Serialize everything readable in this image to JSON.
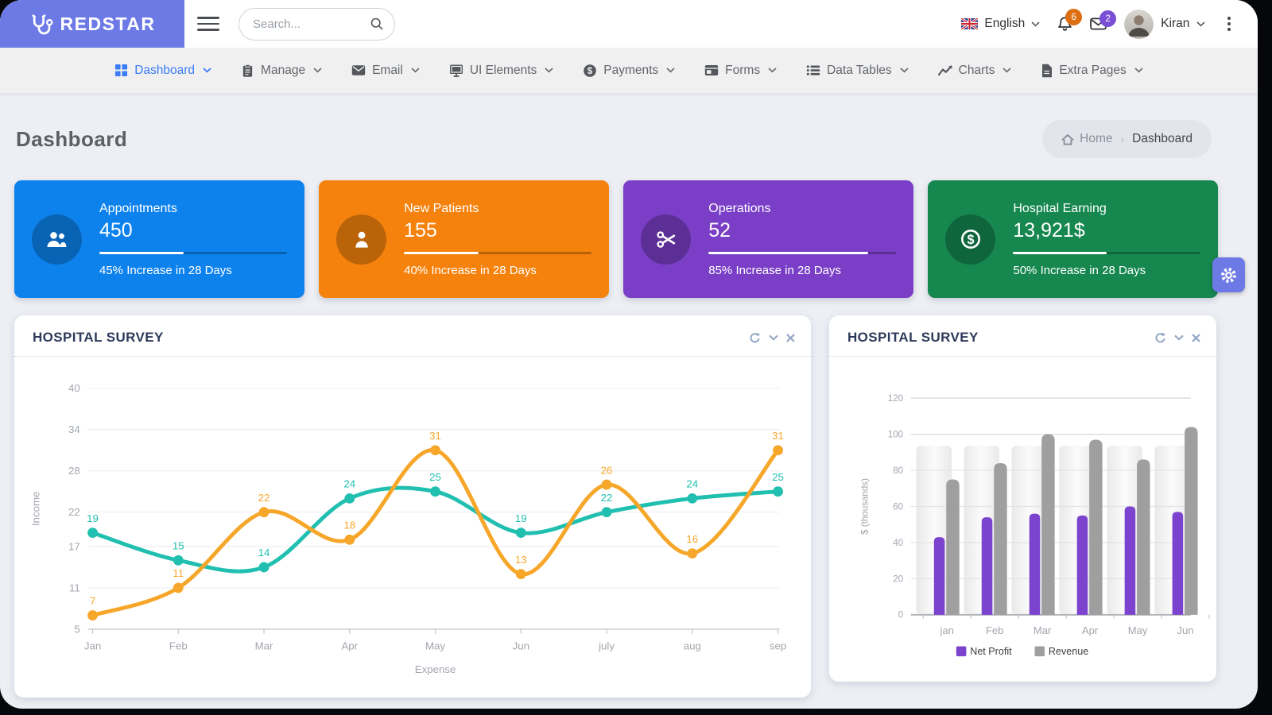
{
  "topbar": {
    "brand": "REDSTAR",
    "brand_color": "#6d7ae6",
    "search_placeholder": "Search...",
    "language": "English",
    "notifications_count": "6",
    "messages_count": "2",
    "user_name": "Kiran"
  },
  "nav": {
    "items": [
      {
        "label": "Dashboard",
        "active": true
      },
      {
        "label": "Manage",
        "active": false
      },
      {
        "label": "Email",
        "active": false
      },
      {
        "label": "UI Elements",
        "active": false
      },
      {
        "label": "Payments",
        "active": false
      },
      {
        "label": "Forms",
        "active": false
      },
      {
        "label": "Data Tables",
        "active": false
      },
      {
        "label": "Charts",
        "active": false
      },
      {
        "label": "Extra Pages",
        "active": false
      }
    ]
  },
  "page": {
    "title": "Dashboard",
    "breadcrumb": {
      "home": "Home",
      "current": "Dashboard"
    }
  },
  "stat_cards": [
    {
      "title": "Appointments",
      "value": "450",
      "caption": "45% Increase in 28 Days",
      "percent": 45,
      "color": "#0d82ed",
      "icon": "people-icon"
    },
    {
      "title": "New Patients",
      "value": "155",
      "caption": "40% Increase in 28 Days",
      "percent": 40,
      "color": "#f5820d",
      "icon": "patient-icon"
    },
    {
      "title": "Operations",
      "value": "52",
      "caption": "85% Increase in 28 Days",
      "percent": 85,
      "color": "#7a3fc6",
      "icon": "scissors-icon"
    },
    {
      "title": "Hospital Earning",
      "value": "13,921$",
      "caption": "50% Increase in 28 Days",
      "percent": 50,
      "color": "#16874f",
      "icon": "dollar-icon"
    }
  ],
  "panels": [
    {
      "title": "HOSPITAL SURVEY"
    },
    {
      "title": "HOSPITAL SURVEY"
    }
  ],
  "chart_data": [
    {
      "type": "line",
      "title": "HOSPITAL SURVEY",
      "x": [
        "Jan",
        "Feb",
        "Mar",
        "Apr",
        "May",
        "Jun",
        "july",
        "aug",
        "sep"
      ],
      "xlabel": "Expense",
      "ylabel": "Income",
      "yticks": [
        5,
        11,
        17,
        22,
        28,
        34,
        40
      ],
      "ylim": [
        5,
        40
      ],
      "grid": true,
      "legend_position": "none",
      "series": [
        {
          "name": "teal-series",
          "color": "#21bfb0",
          "values": [
            19,
            15,
            14,
            24,
            25,
            19,
            22,
            24,
            25
          ]
        },
        {
          "name": "orange-series",
          "color": "#f6a72a",
          "values": [
            7,
            11,
            22,
            18,
            31,
            13,
            26,
            16,
            31
          ]
        }
      ]
    },
    {
      "type": "bar",
      "title": "HOSPITAL SURVEY",
      "categories": [
        "jan",
        "Feb",
        "Mar",
        "Apr",
        "May",
        "Jun"
      ],
      "xlabel": "",
      "ylabel": "$ (thousands)",
      "yticks": [
        0,
        20,
        40,
        60,
        80,
        100,
        120
      ],
      "ylim": [
        0,
        120
      ],
      "grid": true,
      "legend_position": "bottom",
      "series": [
        {
          "name": "Net Profit",
          "color": "#7c44ce",
          "values": [
            43,
            54,
            56,
            55,
            60,
            57
          ]
        },
        {
          "name": "Revenue",
          "color": "#9f9f9f",
          "values": [
            75,
            84,
            100,
            97,
            86,
            104
          ]
        }
      ]
    }
  ]
}
